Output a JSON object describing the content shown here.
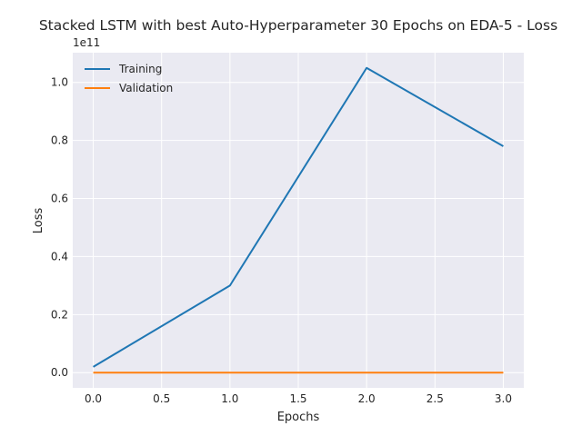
{
  "chart_data": {
    "type": "line",
    "title": "Stacked LSTM with best Auto-Hyperparameter 30 Epochs on EDA-5 - Loss",
    "xlabel": "Epochs",
    "ylabel": "Loss",
    "y_multiplier_label": "1e11",
    "y_scale_factor": 100000000000,
    "xlim": [
      -0.15,
      3.15
    ],
    "ylim": [
      -0.0525,
      1.1025
    ],
    "x_ticks": [
      0.0,
      0.5,
      1.0,
      1.5,
      2.0,
      2.5,
      3.0
    ],
    "x_tick_labels": [
      "0.0",
      "0.5",
      "1.0",
      "1.5",
      "2.0",
      "2.5",
      "3.0"
    ],
    "y_ticks": [
      0.0,
      0.2,
      0.4,
      0.6,
      0.8,
      1.0
    ],
    "y_tick_labels": [
      "0.0",
      "0.2",
      "0.4",
      "0.6",
      "0.8",
      "1.0"
    ],
    "grid": true,
    "legend_position": "upper-left",
    "background_color": "#eaeaf2",
    "grid_color": "#ffffff",
    "x": [
      0,
      1,
      2,
      3
    ],
    "series": [
      {
        "name": "Training",
        "color": "#1f77b4",
        "values": [
          0.02,
          0.3,
          1.05,
          0.78
        ]
      },
      {
        "name": "Validation",
        "color": "#ff7f0e",
        "values": [
          0.0,
          0.0,
          0.0,
          0.0
        ]
      }
    ]
  }
}
